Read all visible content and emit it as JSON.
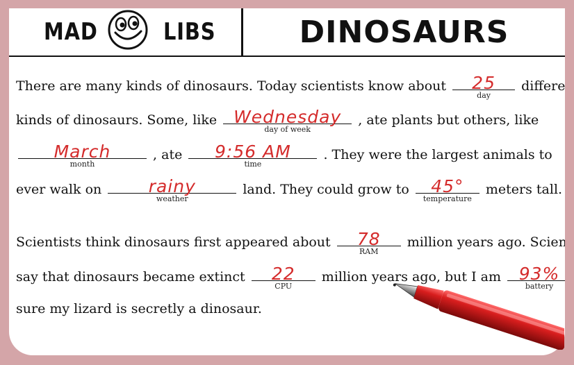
{
  "header": {
    "logo_left": "MAD",
    "logo_right": "LIBS",
    "title": "DINOSAURS"
  },
  "story": {
    "l1": {
      "a": "There are many kinds of dinosaurs. Today scientists know about",
      "b": "different"
    },
    "l2": {
      "a": "kinds of dinosaurs. Some, like",
      "b": ", ate plants but others, like"
    },
    "l3": {
      "a": ", ate",
      "b": ". They were the largest animals to"
    },
    "l4": {
      "a": "ever walk on",
      "b": "land. They could grow to",
      "c": "meters tall."
    },
    "l5": {
      "a": "Scientists think dinosaurs first appeared about",
      "b": "million years ago. Scientists"
    },
    "l6": {
      "a": "say that dinosaurs became extinct",
      "b": "million years ago, but I am"
    },
    "l7": {
      "a": "sure my lizard is secretly a dinosaur."
    }
  },
  "blanks": {
    "day": {
      "value": "25",
      "label": "day"
    },
    "day_of_week": {
      "value": "Wednesday",
      "label": "day of week"
    },
    "month": {
      "value": "March",
      "label": "month"
    },
    "time": {
      "value": "9:56 AM",
      "label": "time"
    },
    "weather": {
      "value": "rainy",
      "label": "weather"
    },
    "temperature": {
      "value": "45°",
      "label": "temperature"
    },
    "ram": {
      "value": "78",
      "label": "RAM"
    },
    "cpu": {
      "value": "22",
      "label": "CPU"
    },
    "battery": {
      "value": "93%",
      "label": "battery"
    }
  },
  "icons": {
    "logo": "smiley-face-icon",
    "pen": "red-pen-icon"
  },
  "colors": {
    "ink": "#d42b2b",
    "background": "#d4a5a8"
  }
}
